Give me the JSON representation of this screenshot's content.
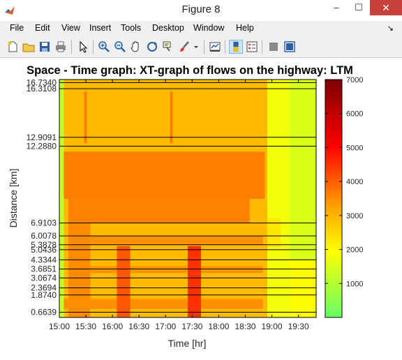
{
  "window": {
    "title": "Figure 8",
    "minimize_glyph": "–",
    "maximize_glyph": "☐",
    "close_glyph": "✕"
  },
  "menu": {
    "items": [
      "File",
      "Edit",
      "View",
      "Insert",
      "Tools",
      "Desktop",
      "Window",
      "Help"
    ],
    "dock_glyph": "↘"
  },
  "toolbar": {
    "buttons": [
      "new-figure-icon",
      "open-file-icon",
      "save-icon",
      "print-icon",
      "select-arrow-icon",
      "zoom-in-icon",
      "zoom-out-icon",
      "pan-hand-icon",
      "rotate-3d-icon",
      "data-cursor-icon",
      "brush-icon",
      "dropdown-arrow-icon",
      "link-plot-icon",
      "colorbar-toggle-icon",
      "legend-toggle-icon",
      "hide-plot-tools-icon",
      "show-plot-tools-icon"
    ],
    "active_button": "colorbar-toggle-icon"
  },
  "chart_data": {
    "type": "heatmap",
    "title": "Space - Time graph: XT-graph of flows on the highway: LTM",
    "xlabel": "Time [hr]",
    "ylabel": "Distance [km]",
    "x_ticks": [
      "15:00",
      "15:30",
      "16:00",
      "16:30",
      "17:00",
      "17:30",
      "18:00",
      "18:30",
      "19:00",
      "19:30"
    ],
    "x_range": [
      "15:00",
      "19:50"
    ],
    "y_range": [
      0.3,
      16.95
    ],
    "y_ticks": [
      0.6639,
      1.874,
      2.3694,
      3.0674,
      3.6851,
      4.3344,
      5.0436,
      5.3878,
      6.0078,
      6.9103,
      12.288,
      12.9091,
      16.3108,
      16.734
    ],
    "y_tick_labels": [
      "0.6639",
      "1.8740",
      "2.3694",
      "3.0674",
      "3.6851",
      "4.3344",
      "5.0436",
      "5.3878",
      "6.0078",
      "6.9103",
      "12.2880",
      "12.9091",
      "16.3108",
      "16.7340"
    ],
    "colorbar": {
      "range": [
        0,
        7000
      ],
      "ticks": [
        1000,
        2000,
        3000,
        4000,
        5000,
        6000,
        7000
      ],
      "colormap": [
        "#66ff66",
        "#ffff00",
        "#ff9900",
        "#ff0000",
        "#7f0000"
      ]
    },
    "regions": [
      {
        "t0": "15:00",
        "t1": "15:05",
        "d0": 0.3,
        "d1": 16.95,
        "flow": 1200
      },
      {
        "t0": "15:05",
        "t1": "18:55",
        "d0": 0.3,
        "d1": 16.95,
        "flow": 2900
      },
      {
        "t0": "18:55",
        "t1": "19:20",
        "d0": 0.3,
        "d1": 16.95,
        "flow": 1800
      },
      {
        "t0": "19:20",
        "t1": "19:50",
        "d0": 0.3,
        "d1": 16.95,
        "flow": 1500
      },
      {
        "t0": "15:05",
        "t1": "18:52",
        "d0": 8.6,
        "d1": 11.9,
        "flow": 3650
      },
      {
        "t0": "15:10",
        "t1": "18:35",
        "d0": 6.9,
        "d1": 8.6,
        "flow": 3600
      },
      {
        "t0": "15:10",
        "t1": "15:35",
        "d0": 0.3,
        "d1": 6.9,
        "flow": 3500
      },
      {
        "t0": "15:05",
        "t1": "18:50",
        "d0": 0.9,
        "d1": 1.6,
        "flow": 3450
      },
      {
        "t0": "15:35",
        "t1": "18:50",
        "d0": 5.4,
        "d1": 6.0,
        "flow": 3450
      },
      {
        "t0": "15:35",
        "t1": "18:50",
        "d0": 3.4,
        "d1": 3.9,
        "flow": 3400
      },
      {
        "t0": "18:55",
        "t1": "19:10",
        "d0": 5.2,
        "d1": 7.2,
        "flow": 2300
      },
      {
        "t0": "19:20",
        "t1": "19:50",
        "d0": 0.3,
        "d1": 4.3,
        "flow": 2000
      },
      {
        "t0": "15:28",
        "t1": "15:31",
        "d0": 12.5,
        "d1": 16.1,
        "flow": 3700
      },
      {
        "t0": "17:05",
        "t1": "17:08",
        "d0": 12.5,
        "d1": 16.1,
        "flow": 3700
      },
      {
        "t0": "16:05",
        "t1": "16:20",
        "d0": 0.3,
        "d1": 5.3,
        "flow": 4100
      },
      {
        "t0": "17:25",
        "t1": "17:40",
        "d0": 0.3,
        "d1": 5.3,
        "flow": 4500
      }
    ]
  }
}
